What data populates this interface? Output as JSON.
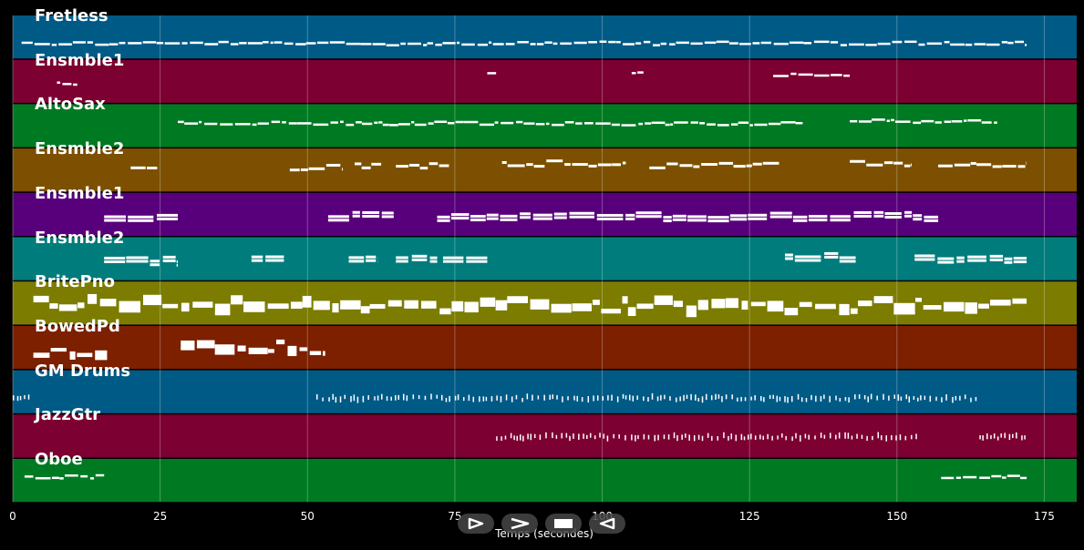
{
  "x_axis": {
    "label": "Temps (secondes)",
    "ticks": [
      {
        "value": 0,
        "label": "0"
      },
      {
        "value": 25,
        "label": "25"
      },
      {
        "value": 50,
        "label": "50"
      },
      {
        "value": 75,
        "label": "75"
      },
      {
        "value": 100,
        "label": "100"
      },
      {
        "value": 125,
        "label": "125"
      },
      {
        "value": 150,
        "label": "150"
      },
      {
        "value": 175,
        "label": "175"
      }
    ],
    "range": [
      0,
      180.5
    ]
  },
  "tracks": [
    {
      "label": "Fretless",
      "color": "#005a86",
      "density": "thin",
      "segments": [
        [
          1.5,
          172,
          0.65
        ]
      ]
    },
    {
      "label": "Ensmble1",
      "color": "#7c0032",
      "density": "thin",
      "segments": [
        [
          7.5,
          11,
          0.55
        ],
        [
          80.5,
          82,
          0.3
        ],
        [
          105,
          107,
          0.3
        ],
        [
          129,
          142,
          0.35
        ]
      ]
    },
    {
      "label": "AltoSax",
      "color": "#007a22",
      "density": "thin",
      "segments": [
        [
          28,
          134,
          0.45
        ],
        [
          142,
          167,
          0.4
        ]
      ]
    },
    {
      "label": "Ensmble2",
      "color": "#7c5000",
      "density": "medium",
      "segments": [
        [
          20,
          24.5,
          0.5
        ],
        [
          47,
          56,
          0.45
        ],
        [
          58,
          62.5,
          0.4
        ],
        [
          65,
          74,
          0.4
        ],
        [
          83,
          104,
          0.35
        ],
        [
          108,
          130,
          0.4
        ],
        [
          142,
          152.5,
          0.35
        ],
        [
          157,
          172,
          0.4
        ]
      ]
    },
    {
      "label": "Ensmble1",
      "color": "#58007c",
      "density": "thick",
      "segments": [
        [
          15.5,
          28,
          0.55
        ],
        [
          53.5,
          65,
          0.55
        ],
        [
          72,
          157,
          0.55
        ]
      ]
    },
    {
      "label": "Ensmble2",
      "color": "#007c7c",
      "density": "thick",
      "segments": [
        [
          15.5,
          28,
          0.55
        ],
        [
          40.5,
          46,
          0.5
        ],
        [
          57,
          62,
          0.5
        ],
        [
          65,
          72,
          0.5
        ],
        [
          73,
          80.5,
          0.55
        ],
        [
          131,
          143,
          0.45
        ],
        [
          153,
          172,
          0.5
        ]
      ]
    },
    {
      "label": "BritePno",
      "color": "#7c7c00",
      "density": "blocks",
      "segments": [
        [
          3.5,
          172,
          0.55
        ]
      ]
    },
    {
      "label": "BowedPd",
      "color": "#7c2000",
      "density": "blocks",
      "segments": [
        [
          3.5,
          16,
          0.55
        ],
        [
          28.5,
          53,
          0.5
        ]
      ]
    },
    {
      "label": "GM Drums",
      "color": "#005a86",
      "density": "ticks",
      "segments": [
        [
          0,
          3,
          0.65
        ],
        [
          51.5,
          164,
          0.65
        ]
      ]
    },
    {
      "label": "JazzGtr",
      "color": "#7c0032",
      "density": "ticks",
      "segments": [
        [
          82,
          153.5,
          0.52
        ],
        [
          164,
          172,
          0.52
        ]
      ]
    },
    {
      "label": "Oboe",
      "color": "#007a22",
      "density": "thin",
      "segments": [
        [
          2,
          15.5,
          0.42
        ],
        [
          157.5,
          172,
          0.42
        ]
      ]
    }
  ],
  "controls": [
    {
      "name": "play-button",
      "icon": "play-outline-icon"
    },
    {
      "name": "forward-button",
      "icon": "chevron-right-icon"
    },
    {
      "name": "stop-button",
      "icon": "stop-icon"
    },
    {
      "name": "rewind-button",
      "icon": "play-reverse-icon"
    }
  ]
}
